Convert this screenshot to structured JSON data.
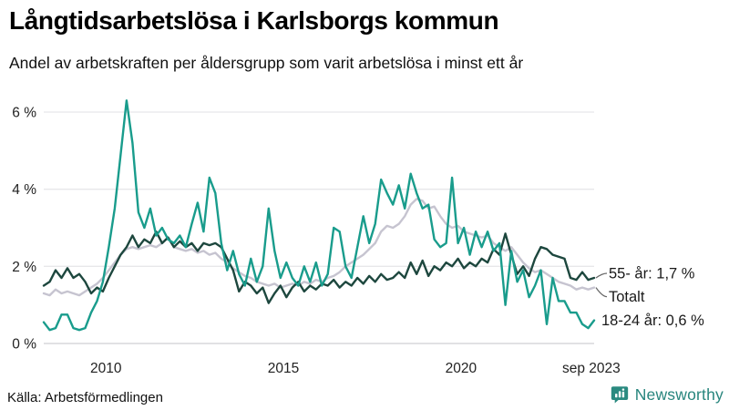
{
  "header": {
    "title": "Långtidsarbetslösa i Karlsborgs kommun",
    "subtitle": "Andel av arbetskraften per åldersgrupp som varit arbetslösa i minst ett år"
  },
  "footer": {
    "source": "Källa: Arbetsförmedlingen",
    "brand_name": "Newsworthy",
    "brand_color": "#2a8a80"
  },
  "chart_data": {
    "type": "line",
    "title": "Långtidsarbetslösa i Karlsborgs kommun",
    "subtitle": "Andel av arbetskraften per åldersgrupp som varit arbetslösa i minst ett år",
    "unit": "%",
    "grid": true,
    "legend_position": "right-end-labels",
    "x_start": 2008.25,
    "x_end": 2023.75,
    "x_step": 0.1666667,
    "ylim": [
      0,
      6.5
    ],
    "y_axis_max": 6,
    "grid_color": "#e7e7ea",
    "grid_zero_color": "#cfcfd3",
    "connector_color": "#666666",
    "x_ticks": [
      {
        "label": "2010",
        "x": 2010
      },
      {
        "label": "2015",
        "x": 2015
      },
      {
        "label": "2020",
        "x": 2020
      },
      {
        "label": "sep 2023",
        "x": 2023.67
      }
    ],
    "y_ticks": [
      {
        "label": "0 %",
        "v": 0
      },
      {
        "label": "2 %",
        "v": 2
      },
      {
        "label": "4 %",
        "v": 4
      },
      {
        "label": "6 %",
        "v": 6
      }
    ],
    "series": [
      {
        "name": "Totalt",
        "end_label": "Totalt",
        "end_value": 1.45,
        "color": "#c6c4d0",
        "connector": true,
        "label_dy": 10,
        "label_dx": 16,
        "values": [
          1.3,
          1.25,
          1.4,
          1.3,
          1.35,
          1.3,
          1.25,
          1.35,
          1.45,
          1.55,
          1.7,
          1.9,
          2.1,
          2.3,
          2.45,
          2.5,
          2.45,
          2.5,
          2.55,
          2.5,
          2.6,
          2.75,
          2.5,
          2.45,
          2.4,
          2.45,
          2.35,
          2.4,
          2.3,
          2.35,
          2.2,
          2.1,
          1.95,
          1.85,
          1.75,
          1.7,
          1.6,
          1.55,
          1.5,
          1.55,
          1.45,
          1.5,
          1.55,
          1.5,
          1.6,
          1.55,
          1.65,
          1.6,
          1.7,
          1.75,
          1.85,
          2.0,
          2.1,
          2.2,
          2.3,
          2.45,
          2.6,
          2.9,
          3.05,
          3.0,
          3.1,
          3.3,
          3.6,
          3.75,
          3.7,
          3.5,
          3.55,
          3.3,
          3.1,
          3.0,
          3.05,
          2.9,
          2.85,
          2.8,
          2.75,
          2.8,
          2.6,
          2.5,
          2.4,
          2.5,
          2.3,
          2.1,
          1.95,
          1.85,
          1.9,
          1.8,
          1.7,
          1.6,
          1.55,
          1.5,
          1.4,
          1.45,
          1.4,
          1.45
        ]
      },
      {
        "name": "55- år",
        "end_label": "55- år: 1,7 %",
        "end_value": 1.7,
        "color": "#1d473e",
        "connector": true,
        "label_dy": -5,
        "label_dx": 16,
        "values": [
          1.5,
          1.6,
          1.9,
          1.7,
          1.95,
          1.7,
          1.8,
          1.6,
          1.3,
          1.45,
          1.35,
          1.7,
          2.0,
          2.3,
          2.5,
          2.8,
          2.5,
          2.7,
          2.6,
          2.9,
          2.6,
          2.75,
          2.5,
          2.65,
          2.5,
          2.6,
          2.4,
          2.6,
          2.55,
          2.6,
          2.5,
          2.2,
          1.9,
          1.35,
          1.6,
          1.5,
          1.3,
          1.45,
          1.05,
          1.3,
          1.5,
          1.2,
          1.45,
          1.6,
          1.35,
          1.5,
          1.4,
          1.55,
          1.5,
          1.65,
          1.45,
          1.6,
          1.5,
          1.7,
          1.55,
          1.75,
          1.6,
          1.8,
          1.65,
          1.7,
          1.85,
          1.7,
          2.1,
          1.8,
          2.15,
          1.75,
          2.0,
          1.9,
          2.1,
          2.0,
          2.2,
          1.95,
          2.1,
          2.0,
          2.2,
          2.1,
          2.45,
          2.3,
          2.85,
          2.3,
          1.8,
          2.0,
          1.75,
          2.2,
          2.5,
          2.45,
          2.3,
          2.25,
          2.2,
          1.7,
          1.65,
          1.85,
          1.65,
          1.7
        ]
      },
      {
        "name": "18-24 år",
        "end_label": "18-24 år: 0,6 %",
        "end_value": 0.6,
        "color": "#199c8c",
        "connector": false,
        "label_dy": 0,
        "label_dx": 8,
        "values": [
          0.55,
          0.35,
          0.4,
          0.75,
          0.75,
          0.4,
          0.35,
          0.4,
          0.8,
          1.1,
          1.6,
          2.5,
          3.5,
          4.9,
          6.3,
          5.2,
          3.4,
          3.0,
          3.5,
          2.8,
          3.0,
          2.7,
          2.6,
          2.8,
          2.5,
          3.1,
          3.65,
          2.9,
          4.3,
          3.9,
          2.6,
          1.9,
          2.4,
          1.8,
          1.5,
          2.2,
          1.6,
          2.0,
          3.5,
          2.4,
          1.7,
          2.1,
          1.7,
          1.5,
          2.0,
          1.6,
          2.1,
          1.5,
          1.8,
          3.0,
          2.9,
          2.0,
          1.7,
          2.5,
          3.3,
          2.6,
          3.1,
          4.25,
          3.9,
          3.6,
          4.1,
          3.5,
          4.4,
          3.9,
          3.5,
          3.6,
          2.7,
          2.5,
          2.6,
          4.3,
          2.6,
          3.0,
          2.3,
          2.9,
          2.5,
          2.9,
          2.4,
          2.6,
          1.0,
          2.4,
          1.6,
          1.9,
          1.2,
          1.5,
          1.9,
          0.5,
          1.7,
          1.1,
          1.1,
          0.8,
          0.8,
          0.5,
          0.4,
          0.6
        ]
      }
    ]
  }
}
